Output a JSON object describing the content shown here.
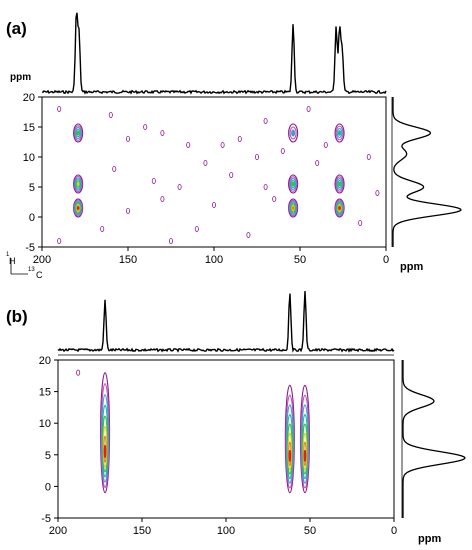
{
  "chart_data": [
    {
      "type": "heatmap",
      "panel_label": "(a)",
      "xlim": [
        200,
        0
      ],
      "ylim": [
        -5,
        20
      ],
      "x_ticks": [
        "200",
        "150",
        "100",
        "50",
        "0"
      ],
      "x_tick_values": [
        200,
        150,
        100,
        50,
        0
      ],
      "y_ticks": [
        "20",
        "15",
        "10",
        "5",
        "0",
        "-5"
      ],
      "y_tick_values": [
        20,
        15,
        10,
        5,
        0,
        -5
      ],
      "top_axis_label": "ppm",
      "right_axis_label": "ppm",
      "nucleus_1h": "H",
      "nucleus_1h_mass": "1",
      "nucleus_13c": "C",
      "nucleus_13c_mass": "13",
      "top_projection_peaks": [
        {
          "x": 180,
          "height": 1.0
        },
        {
          "x": 178.5,
          "height": 0.75
        },
        {
          "x": 54,
          "height": 0.88
        },
        {
          "x": 29,
          "height": 0.85
        },
        {
          "x": 27,
          "height": 0.82
        },
        {
          "x": 25.5,
          "height": 0.55
        }
      ],
      "right_projection_peaks": [
        {
          "y": 14,
          "height": 0.55
        },
        {
          "y": 10.5,
          "height": 0.2
        },
        {
          "y": 5,
          "height": 0.45
        },
        {
          "y": 1.2,
          "height": 1.0
        }
      ],
      "cross_peaks": [
        {
          "x": 179,
          "y": 14,
          "intensity": 0.6
        },
        {
          "x": 179,
          "y": 5.5,
          "intensity": 0.7
        },
        {
          "x": 179,
          "y": 1.5,
          "intensity": 1.0
        },
        {
          "x": 54,
          "y": 14,
          "intensity": 0.4
        },
        {
          "x": 54,
          "y": 5.5,
          "intensity": 0.6
        },
        {
          "x": 54,
          "y": 1.5,
          "intensity": 0.9
        },
        {
          "x": 27,
          "y": 14,
          "intensity": 0.5
        },
        {
          "x": 27,
          "y": 5.5,
          "intensity": 0.6
        },
        {
          "x": 27,
          "y": 1.5,
          "intensity": 1.0
        }
      ],
      "noise_contours": [
        [
          190,
          18
        ],
        [
          160,
          17
        ],
        [
          150,
          13
        ],
        [
          140,
          15
        ],
        [
          130,
          14
        ],
        [
          115,
          12
        ],
        [
          95,
          12
        ],
        [
          85,
          13
        ],
        [
          75,
          10
        ],
        [
          70,
          16
        ],
        [
          90,
          7
        ],
        [
          135,
          6
        ],
        [
          120,
          5
        ],
        [
          65,
          3
        ],
        [
          100,
          2
        ],
        [
          150,
          1
        ],
        [
          110,
          -2
        ],
        [
          80,
          -3
        ],
        [
          40,
          9
        ],
        [
          45,
          18
        ],
        [
          10,
          10
        ],
        [
          5,
          4
        ],
        [
          15,
          -1
        ],
        [
          125,
          -4
        ],
        [
          70,
          5
        ],
        [
          158,
          8
        ],
        [
          105,
          9
        ],
        [
          35,
          12
        ],
        [
          165,
          -2
        ],
        [
          190,
          -4
        ],
        [
          60,
          11
        ],
        [
          130,
          3
        ]
      ]
    },
    {
      "type": "heatmap",
      "panel_label": "(b)",
      "xlim": [
        200,
        0
      ],
      "ylim": [
        -5,
        20
      ],
      "x_ticks": [
        "200",
        "150",
        "100",
        "50",
        "0"
      ],
      "x_tick_values": [
        200,
        150,
        100,
        50,
        0
      ],
      "y_ticks": [
        "20",
        "15",
        "10",
        "5",
        "0",
        "-5"
      ],
      "y_tick_values": [
        20,
        15,
        10,
        5,
        0,
        -5
      ],
      "right_axis_label": "ppm",
      "top_projection_peaks": [
        {
          "x": 172,
          "height": 0.85
        },
        {
          "x": 62,
          "height": 1.0
        },
        {
          "x": 53,
          "height": 1.0
        }
      ],
      "right_projection_peaks": [
        {
          "y": 4.5,
          "height": 1.0
        },
        {
          "y": 13.5,
          "height": 0.5
        }
      ],
      "cross_peaks": [
        {
          "x": 172,
          "y": 4.5,
          "intensity": 1.0,
          "span": [
            -1,
            18
          ]
        },
        {
          "x": 62,
          "y": 4.5,
          "intensity": 1.0,
          "span": [
            -1,
            16
          ]
        },
        {
          "x": 53,
          "y": 4.5,
          "intensity": 1.0,
          "span": [
            -1,
            16
          ]
        }
      ],
      "noise_contours": [
        [
          188,
          18
        ]
      ]
    }
  ],
  "colors": {
    "contour_levels": [
      "#8a1a8a",
      "#c050c0",
      "#3aa0d0",
      "#20b8a0",
      "#40c040",
      "#e0d020",
      "#f08020",
      "#e02020"
    ],
    "axis": "#000000",
    "spectrum": "#000000"
  }
}
